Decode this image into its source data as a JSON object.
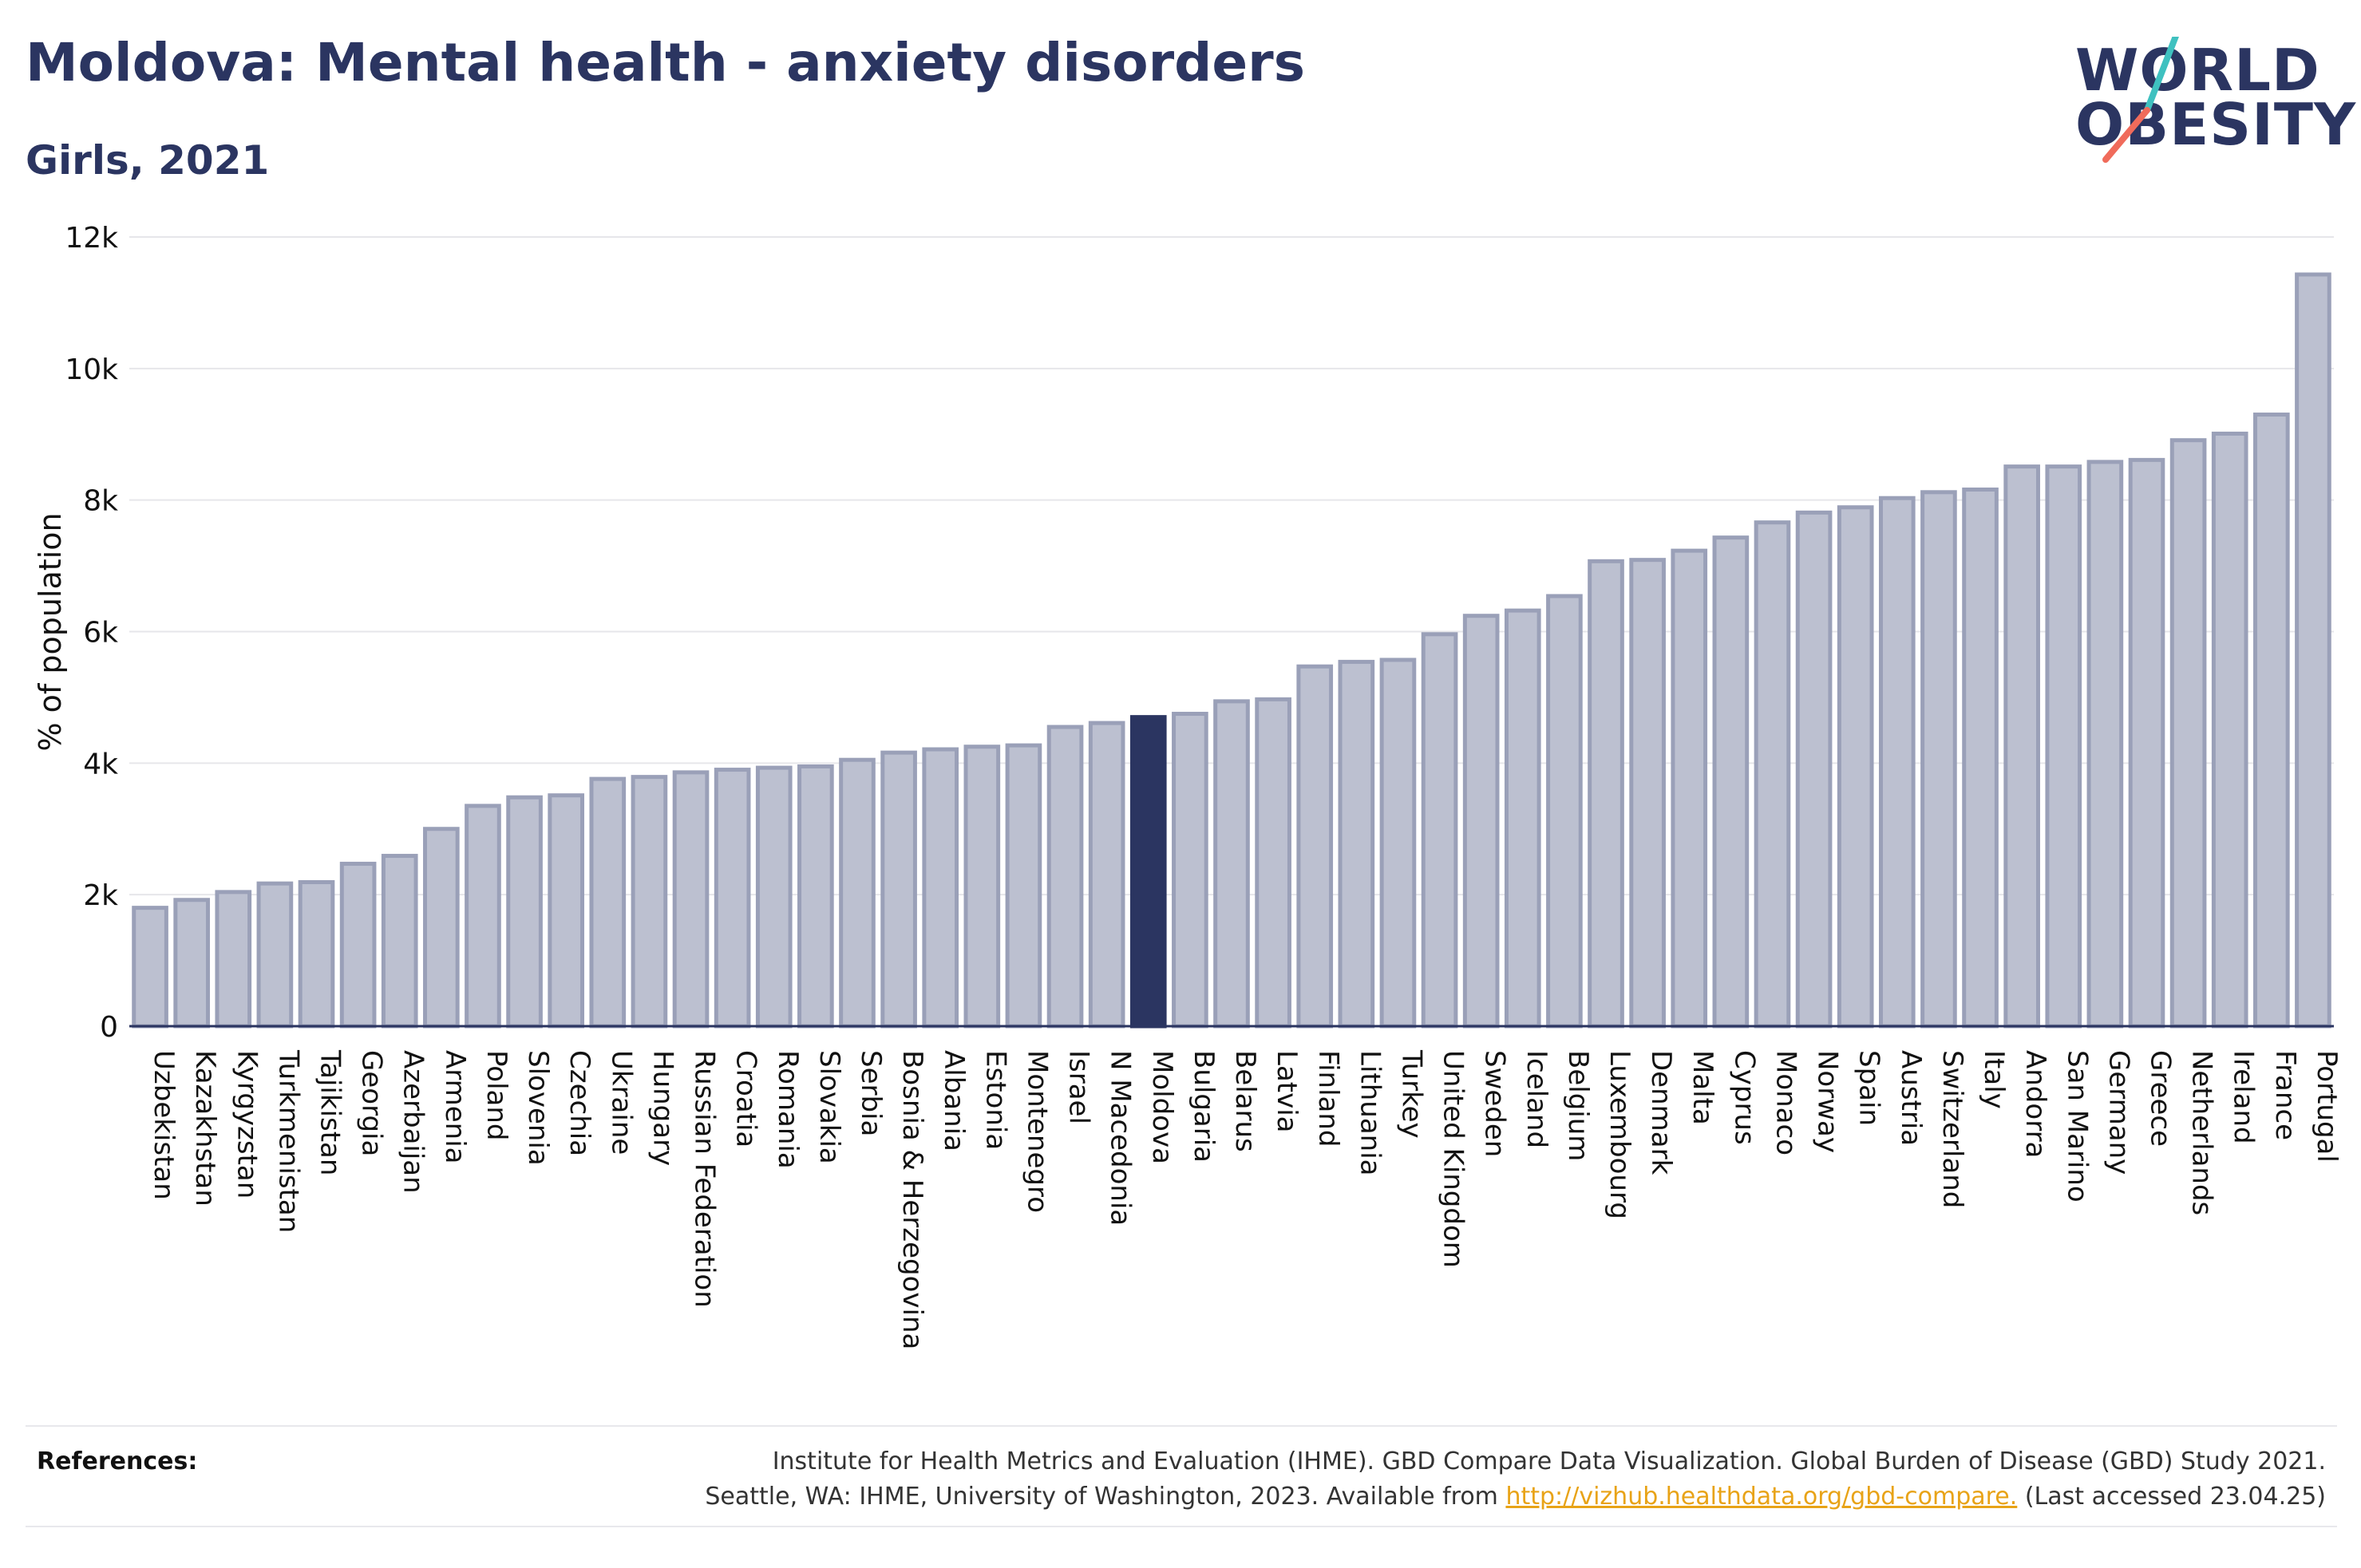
{
  "header": {
    "title": "Moldova: Mental health - anxiety disorders",
    "subtitle": "Girls, 2021"
  },
  "logo": {
    "line1": "WORLD",
    "line2": "OBESITY",
    "slash_colors": [
      "#3fc1c0",
      "#f06b5b"
    ]
  },
  "colors": {
    "bar": "#bcc0d0",
    "bar_stroke": "#9aa0b8",
    "highlight": "#2b3561",
    "axis": "#2b3561",
    "grid": "#e6e6ea",
    "link": "#e8a317"
  },
  "chart_data": {
    "type": "bar",
    "ylabel": "% of population",
    "ylim": [
      0,
      12000
    ],
    "yticks": [
      0,
      2000,
      4000,
      6000,
      8000,
      10000,
      12000
    ],
    "ytick_labels": [
      "0",
      "2k",
      "4k",
      "6k",
      "8k",
      "10k",
      "12k"
    ],
    "grid": true,
    "highlight": "Moldova",
    "categories": [
      "Uzbekistan",
      "Kazakhstan",
      "Kyrgyzstan",
      "Turkmenistan",
      "Tajikistan",
      "Georgia",
      "Azerbaijan",
      "Armenia",
      "Poland",
      "Slovenia",
      "Czechia",
      "Ukraine",
      "Hungary",
      "Russian Federation",
      "Croatia",
      "Romania",
      "Slovakia",
      "Serbia",
      "Bosnia & Herzegovina",
      "Albania",
      "Estonia",
      "Montenegro",
      "Israel",
      "N Macedonia",
      "Moldova",
      "Bulgaria",
      "Belarus",
      "Latvia",
      "Finland",
      "Lithuania",
      "Turkey",
      "United Kingdom",
      "Sweden",
      "Iceland",
      "Belgium",
      "Luxembourg",
      "Denmark",
      "Malta",
      "Cyprus",
      "Monaco",
      "Norway",
      "Spain",
      "Austria",
      "Switzerland",
      "Italy",
      "Andorra",
      "San Marino",
      "Germany",
      "Greece",
      "Netherlands",
      "Ireland",
      "France",
      "Portugal"
    ],
    "values": [
      1800,
      1920,
      2040,
      2170,
      2190,
      2470,
      2590,
      3000,
      3350,
      3480,
      3510,
      3760,
      3790,
      3860,
      3900,
      3930,
      3950,
      4050,
      4160,
      4210,
      4250,
      4270,
      4550,
      4610,
      4700,
      4750,
      4940,
      4970,
      5470,
      5540,
      5570,
      5960,
      6240,
      6320,
      6540,
      7070,
      7090,
      7230,
      7430,
      7660,
      7810,
      7890,
      8030,
      8120,
      8160,
      8510,
      8510,
      8580,
      8610,
      8910,
      9010,
      9300,
      11430
    ]
  },
  "references": {
    "label": "References:",
    "line1": "Institute for Health Metrics and Evaluation (IHME). GBD Compare Data Visualization. Global Burden of Disease (GBD) Study 2021.",
    "line2_prefix": "Seattle, WA: IHME, University of Washington, 2023. Available from ",
    "link": "http://vizhub.healthdata.org/gbd-compare.",
    "line2_suffix": " (Last accessed 23.04.25)"
  }
}
